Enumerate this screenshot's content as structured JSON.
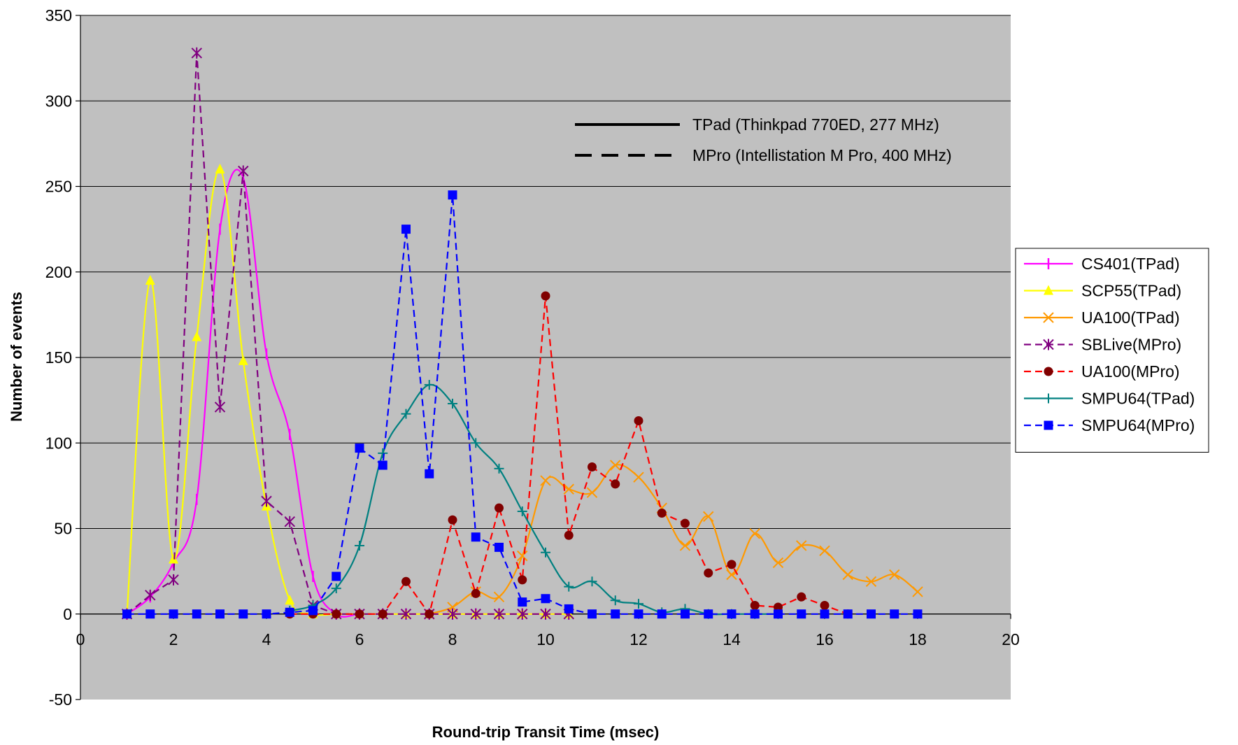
{
  "chart_data": {
    "type": "line",
    "title": "",
    "xlabel": "Round-trip Transit Time (msec)",
    "ylabel": "Number of events",
    "xlim": [
      0,
      20
    ],
    "ylim": [
      -50,
      350
    ],
    "x_ticks": [
      0,
      2,
      4,
      6,
      8,
      10,
      12,
      14,
      16,
      18,
      20
    ],
    "y_ticks": [
      -50,
      0,
      50,
      100,
      150,
      200,
      250,
      300,
      350
    ],
    "grid": "horizontal",
    "plot_background": "#c0c0c0",
    "legend_position": "right",
    "style_key": [
      {
        "label": "TPad (Thinkpad 770ED, 277 MHz)",
        "dash": "solid"
      },
      {
        "label": "MPro (Intellistation M Pro, 400 MHz)",
        "dash": "dashed"
      }
    ],
    "series": [
      {
        "name": "CS401(TPad)",
        "color": "#ff00ff",
        "dash": "solid",
        "marker": "vbar",
        "smooth": true,
        "points": [
          [
            1,
            0
          ],
          [
            1.5,
            10
          ],
          [
            2,
            30
          ],
          [
            2.5,
            67
          ],
          [
            3,
            225
          ],
          [
            3.5,
            255
          ],
          [
            4,
            152
          ],
          [
            4.5,
            105
          ],
          [
            5,
            22
          ],
          [
            5.5,
            0
          ],
          [
            6,
            0
          ],
          [
            6.5,
            0
          ],
          [
            7,
            0
          ],
          [
            7.5,
            0
          ],
          [
            8,
            0
          ],
          [
            8.5,
            0
          ],
          [
            9,
            0
          ],
          [
            9.5,
            0
          ],
          [
            10,
            0
          ],
          [
            10.5,
            0
          ]
        ]
      },
      {
        "name": "SCP55(TPad)",
        "color": "#ffff00",
        "dash": "solid",
        "marker": "triangle",
        "smooth": true,
        "points": [
          [
            1,
            0
          ],
          [
            1.5,
            195
          ],
          [
            2,
            32
          ],
          [
            2.5,
            162
          ],
          [
            3,
            260
          ],
          [
            3.5,
            148
          ],
          [
            4,
            63
          ],
          [
            4.5,
            8
          ],
          [
            5,
            0
          ],
          [
            5.5,
            0
          ],
          [
            6,
            0
          ],
          [
            6.5,
            0
          ],
          [
            7,
            0
          ],
          [
            7.5,
            0
          ],
          [
            8,
            0
          ],
          [
            8.5,
            0
          ],
          [
            9,
            0
          ],
          [
            9.5,
            0
          ],
          [
            10,
            0
          ],
          [
            10.5,
            0
          ]
        ]
      },
      {
        "name": "UA100(TPad)",
        "color": "#ff9900",
        "dash": "solid",
        "marker": "x",
        "smooth": true,
        "points": [
          [
            7.5,
            0
          ],
          [
            8,
            4
          ],
          [
            8.5,
            13
          ],
          [
            9,
            10
          ],
          [
            9.5,
            34
          ],
          [
            10,
            78
          ],
          [
            10.5,
            73
          ],
          [
            11,
            71
          ],
          [
            11.5,
            87
          ],
          [
            12,
            80
          ],
          [
            12.5,
            62
          ],
          [
            13,
            40
          ],
          [
            13.5,
            57
          ],
          [
            14,
            23
          ],
          [
            14.5,
            47
          ],
          [
            15,
            30
          ],
          [
            15.5,
            40
          ],
          [
            16,
            37
          ],
          [
            16.5,
            23
          ],
          [
            17,
            19
          ],
          [
            17.5,
            23
          ],
          [
            18,
            13
          ]
        ]
      },
      {
        "name": "SBLive(MPro)",
        "color": "#800080",
        "dash": "dashed",
        "marker": "star",
        "smooth": false,
        "points": [
          [
            1,
            0
          ],
          [
            1.5,
            11
          ],
          [
            2,
            20
          ],
          [
            2.5,
            328
          ],
          [
            3,
            121
          ],
          [
            3.5,
            259
          ],
          [
            4,
            66
          ],
          [
            4.5,
            54
          ],
          [
            5,
            5
          ],
          [
            5.5,
            0
          ],
          [
            6,
            0
          ],
          [
            6.5,
            0
          ],
          [
            7,
            0
          ],
          [
            7.5,
            0
          ],
          [
            8,
            0
          ],
          [
            8.5,
            0
          ],
          [
            9,
            0
          ],
          [
            9.5,
            0
          ],
          [
            10,
            0
          ],
          [
            10.5,
            0
          ]
        ]
      },
      {
        "name": "UA100(MPro)",
        "color": "#ff0000",
        "marker_color": "#800000",
        "dash": "dashed",
        "marker": "circle",
        "smooth": false,
        "points": [
          [
            4.5,
            0
          ],
          [
            5,
            0
          ],
          [
            5.5,
            0
          ],
          [
            6,
            0
          ],
          [
            6.5,
            0
          ],
          [
            7,
            19
          ],
          [
            7.5,
            0
          ],
          [
            8,
            55
          ],
          [
            8.5,
            12
          ],
          [
            9,
            62
          ],
          [
            9.5,
            20
          ],
          [
            10,
            186
          ],
          [
            10.5,
            46
          ],
          [
            11,
            86
          ],
          [
            11.5,
            76
          ],
          [
            12,
            113
          ],
          [
            12.5,
            59
          ],
          [
            13,
            53
          ],
          [
            13.5,
            24
          ],
          [
            14,
            29
          ],
          [
            14.5,
            5
          ],
          [
            15,
            4
          ],
          [
            15.5,
            10
          ],
          [
            16,
            5
          ],
          [
            16.5,
            0
          ]
        ]
      },
      {
        "name": "SMPU64(TPad)",
        "color": "#008080",
        "dash": "solid",
        "marker": "plus",
        "smooth": true,
        "points": [
          [
            4.5,
            2
          ],
          [
            5,
            5
          ],
          [
            5.5,
            15
          ],
          [
            6,
            40
          ],
          [
            6.5,
            94
          ],
          [
            7,
            117
          ],
          [
            7.5,
            134
          ],
          [
            8,
            123
          ],
          [
            8.5,
            100
          ],
          [
            9,
            85
          ],
          [
            9.5,
            60
          ],
          [
            10,
            36
          ],
          [
            10.5,
            16
          ],
          [
            11,
            19
          ],
          [
            11.5,
            8
          ],
          [
            12,
            6
          ],
          [
            12.5,
            1
          ],
          [
            13,
            3
          ],
          [
            13.5,
            0
          ],
          [
            14,
            0
          ],
          [
            14.5,
            0
          ],
          [
            15,
            0
          ]
        ]
      },
      {
        "name": "SMPU64(MPro)",
        "color": "#0000ff",
        "dash": "dashed",
        "marker": "square",
        "smooth": false,
        "points": [
          [
            1,
            0
          ],
          [
            1.5,
            0
          ],
          [
            2,
            0
          ],
          [
            2.5,
            0
          ],
          [
            3,
            0
          ],
          [
            3.5,
            0
          ],
          [
            4,
            0
          ],
          [
            4.5,
            1
          ],
          [
            5,
            2
          ],
          [
            5.5,
            22
          ],
          [
            6,
            97
          ],
          [
            6.5,
            87
          ],
          [
            7,
            225
          ],
          [
            7.5,
            82
          ],
          [
            8,
            245
          ],
          [
            8.5,
            45
          ],
          [
            9,
            39
          ],
          [
            9.5,
            7
          ],
          [
            10,
            9
          ],
          [
            10.5,
            3
          ],
          [
            11,
            0
          ],
          [
            11.5,
            0
          ],
          [
            12,
            0
          ],
          [
            12.5,
            0
          ],
          [
            13,
            0
          ],
          [
            13.5,
            0
          ],
          [
            14,
            0
          ],
          [
            14.5,
            0
          ],
          [
            15,
            0
          ],
          [
            15.5,
            0
          ],
          [
            16,
            0
          ],
          [
            16.5,
            0
          ],
          [
            17,
            0
          ],
          [
            17.5,
            0
          ],
          [
            18,
            0
          ]
        ]
      }
    ]
  }
}
